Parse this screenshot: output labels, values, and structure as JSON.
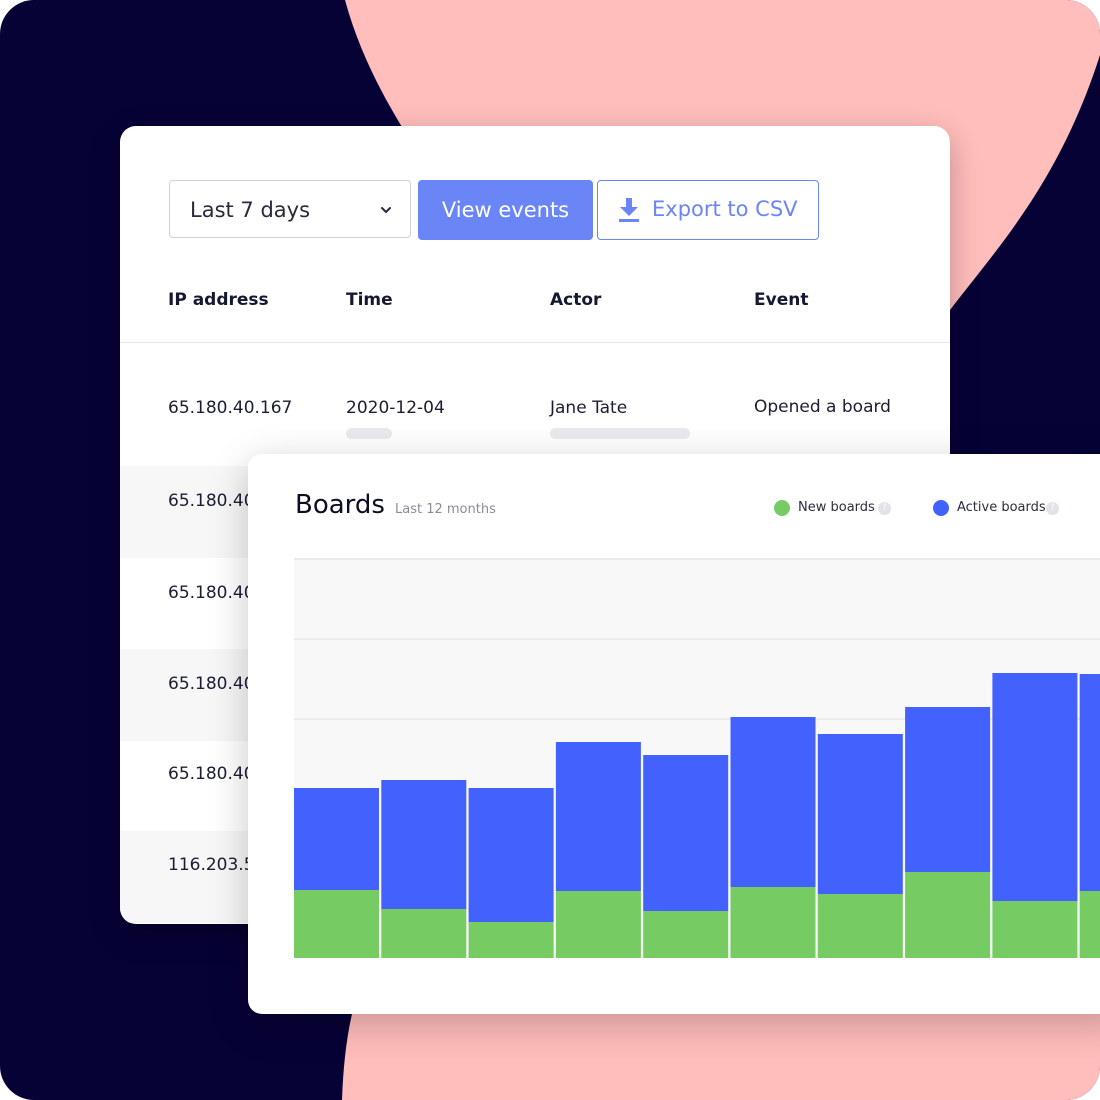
{
  "audit_log": {
    "range_select": {
      "value": "Last 7 days"
    },
    "view_button": "View events",
    "export_button": "Export to CSV",
    "columns": [
      "IP address",
      "Time",
      "Actor",
      "Event"
    ],
    "rows": [
      {
        "ip": "65.180.40.167",
        "time": "2020-12-04",
        "actor": "Jane Tate",
        "event": "Opened a board"
      },
      {
        "ip": "65.180.40"
      },
      {
        "ip": "65.180.40"
      },
      {
        "ip": "65.180.40"
      },
      {
        "ip": "65.180.40"
      },
      {
        "ip": "116.203.5"
      }
    ]
  },
  "boards_card": {
    "title": "Boards",
    "subtitle": "Last 12 months",
    "legend": [
      {
        "label": "New boards",
        "color": "#76cc63",
        "help_icon": "question-icon"
      },
      {
        "label": "Active boards",
        "color": "#4361fd",
        "help_icon": "question-icon"
      }
    ]
  },
  "chart_data": {
    "type": "bar",
    "stacked": true,
    "categories": [
      "",
      "",
      "",
      "",
      "",
      "",
      "",
      "",
      "",
      ""
    ],
    "series": [
      {
        "name": "New boards",
        "color": "#76cc63",
        "values": [
          68,
          49,
          36,
          67,
          47,
          71,
          64,
          86,
          57,
          67
        ]
      },
      {
        "name": "Active boards",
        "color": "#4361fd",
        "values": [
          102,
          129,
          134,
          149,
          156,
          170,
          160,
          165,
          228,
          217
        ]
      }
    ],
    "ylim": [
      0,
      400
    ],
    "grid": true,
    "legend_position": "top-right"
  },
  "theme": {
    "background": "#070236",
    "blob": "#ffbdbb",
    "accent": "#6a86f6"
  }
}
